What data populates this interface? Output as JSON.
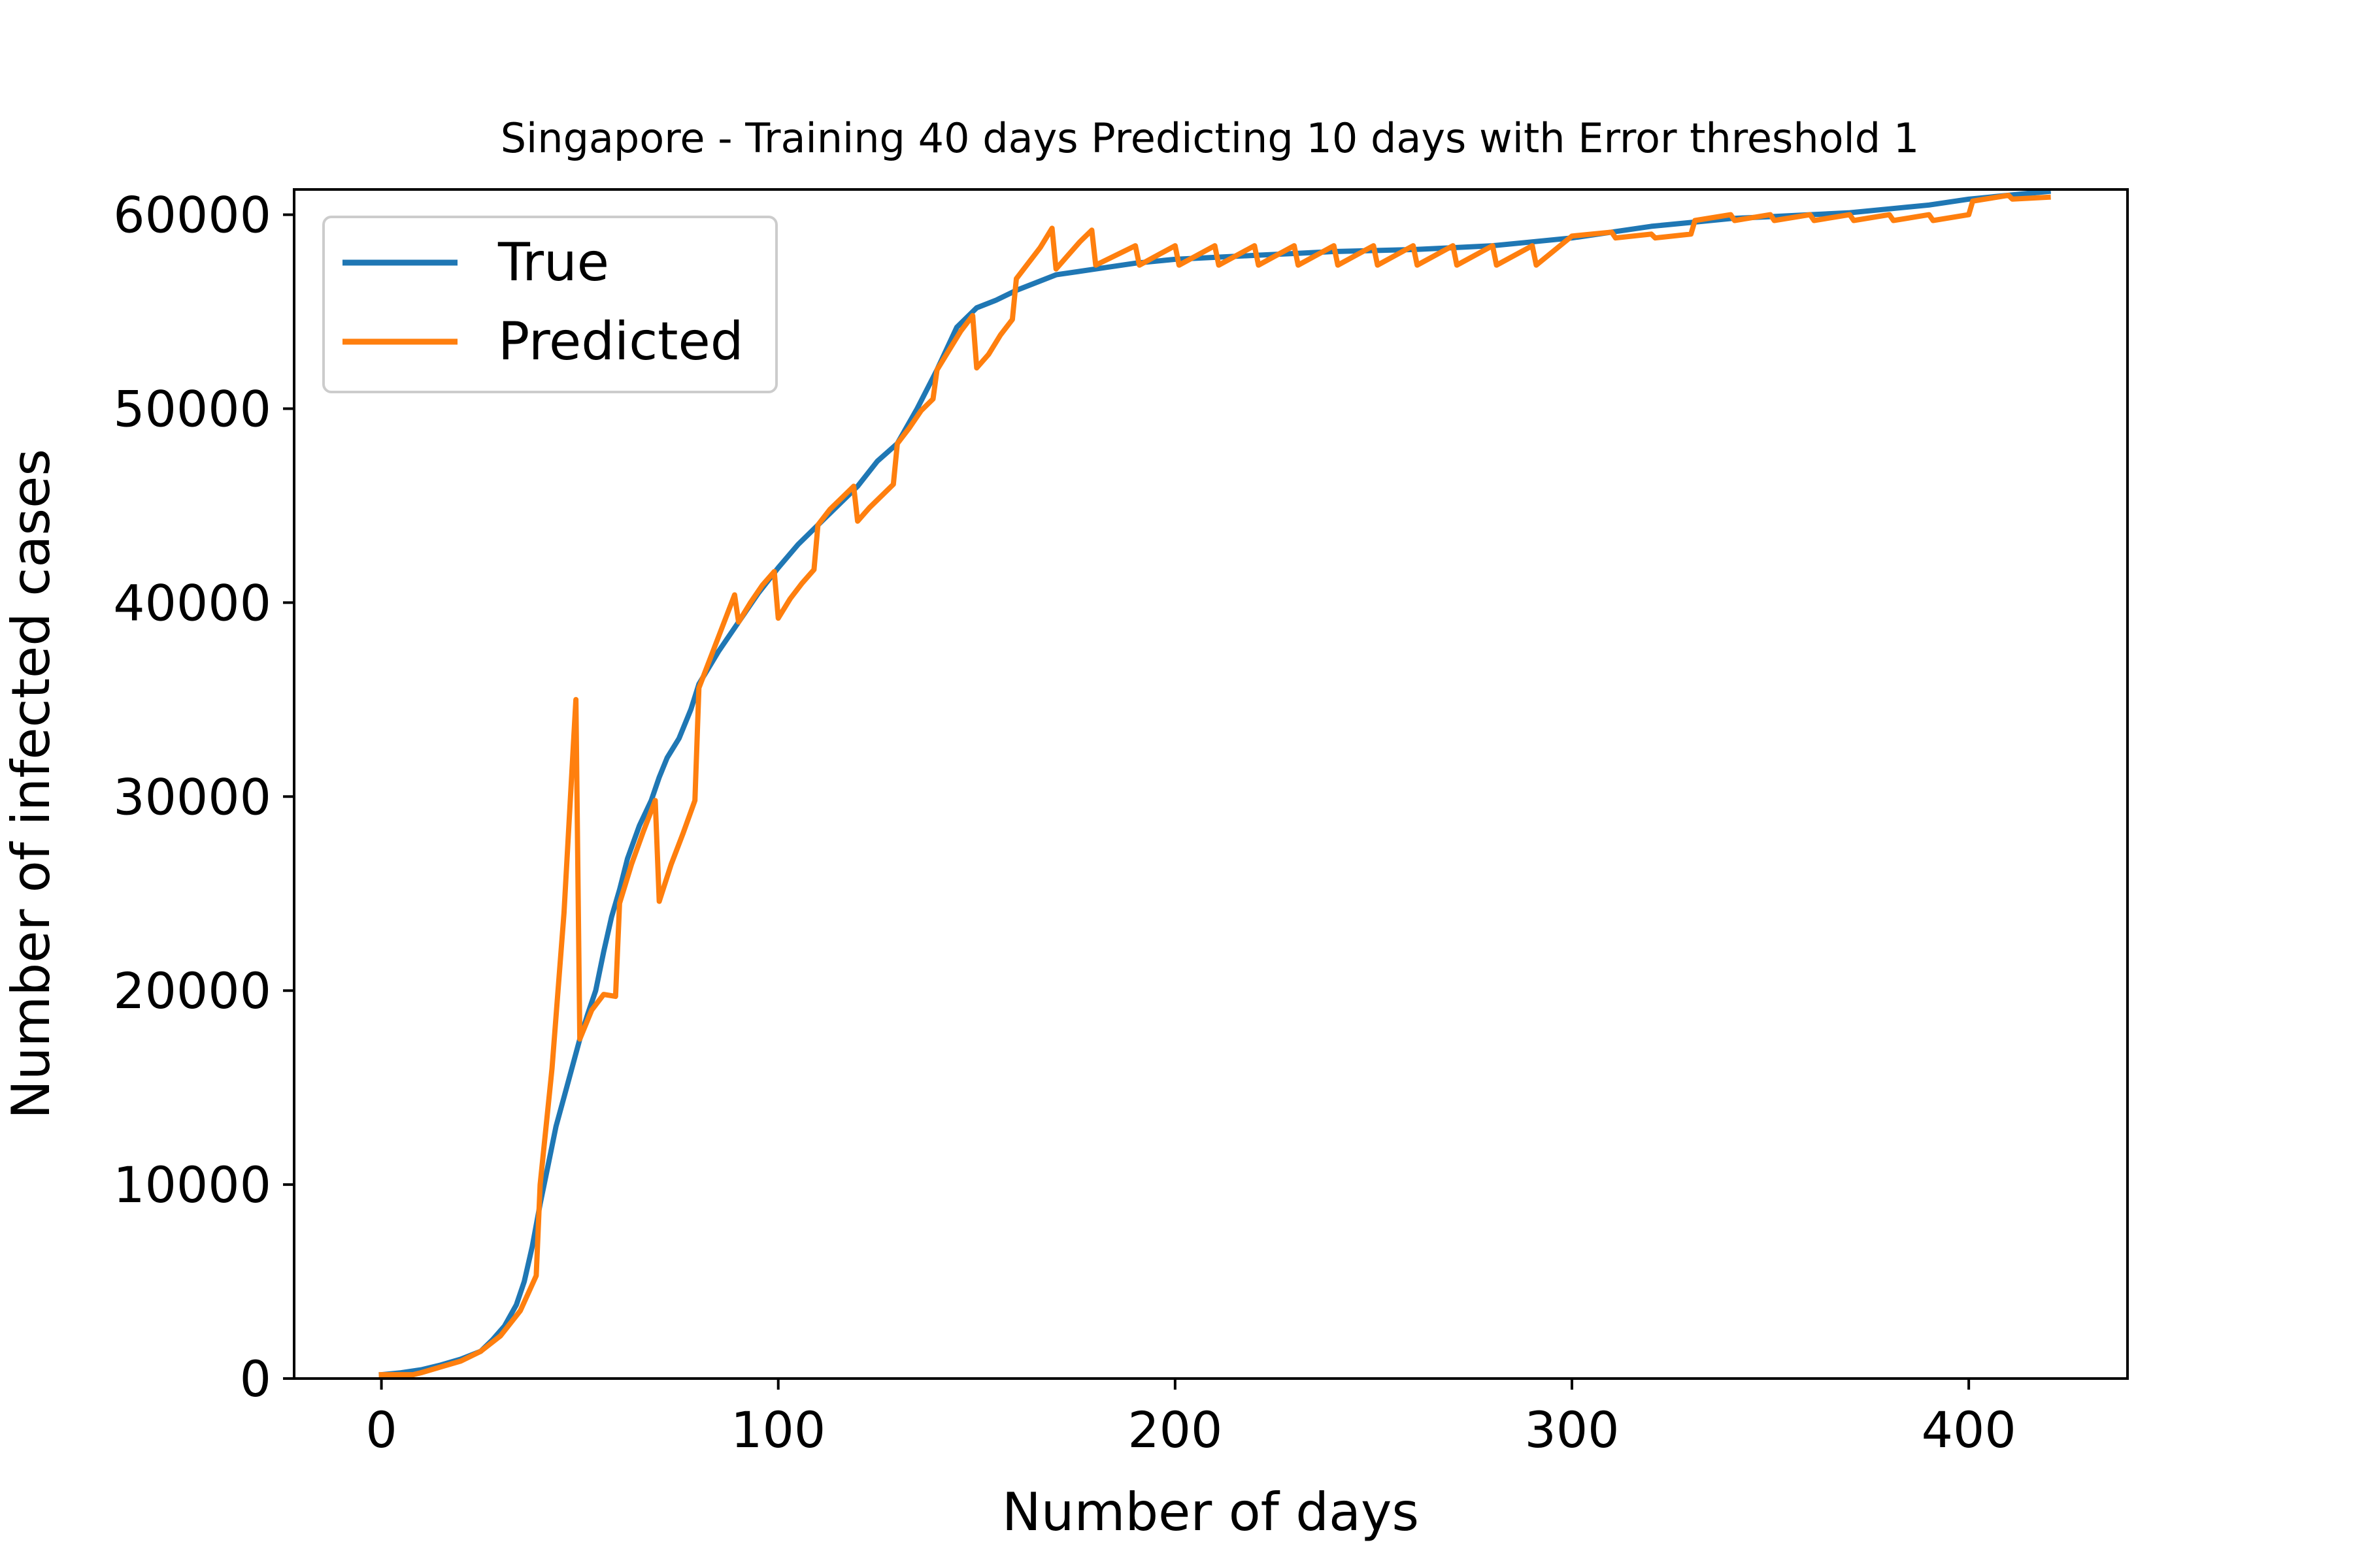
{
  "chart_data": {
    "type": "line",
    "title": "Singapore - Training 40 days Predicting 10 days with Error threshold 1",
    "xlabel": "Number of days",
    "ylabel": "Number of infected cases",
    "xlim": [
      -22,
      440
    ],
    "ylim": [
      0,
      61300
    ],
    "xticks": [
      0,
      100,
      200,
      300,
      400
    ],
    "yticks": [
      0,
      10000,
      20000,
      30000,
      40000,
      50000,
      60000
    ],
    "grid": false,
    "legend_position": "top-left",
    "series": [
      {
        "name": "True",
        "color": "#1f77b4",
        "points": [
          [
            0,
            200
          ],
          [
            5,
            300
          ],
          [
            10,
            450
          ],
          [
            15,
            700
          ],
          [
            20,
            1000
          ],
          [
            25,
            1400
          ],
          [
            28,
            2000
          ],
          [
            31,
            2700
          ],
          [
            34,
            3800
          ],
          [
            36,
            5000
          ],
          [
            38,
            6800
          ],
          [
            40,
            9000
          ],
          [
            42,
            11000
          ],
          [
            44,
            13000
          ],
          [
            46,
            14500
          ],
          [
            48,
            16000
          ],
          [
            50,
            17500
          ],
          [
            52,
            18800
          ],
          [
            54,
            20000
          ],
          [
            56,
            22000
          ],
          [
            58,
            23800
          ],
          [
            60,
            25200
          ],
          [
            62,
            26800
          ],
          [
            65,
            28500
          ],
          [
            68,
            29800
          ],
          [
            70,
            31000
          ],
          [
            72,
            32000
          ],
          [
            75,
            33000
          ],
          [
            78,
            34500
          ],
          [
            80,
            35800
          ],
          [
            85,
            37500
          ],
          [
            90,
            39000
          ],
          [
            95,
            40500
          ],
          [
            100,
            41800
          ],
          [
            105,
            43000
          ],
          [
            110,
            44000
          ],
          [
            115,
            45000
          ],
          [
            120,
            46000
          ],
          [
            125,
            47300
          ],
          [
            130,
            48200
          ],
          [
            135,
            50000
          ],
          [
            140,
            52000
          ],
          [
            145,
            54200
          ],
          [
            150,
            55200
          ],
          [
            155,
            55600
          ],
          [
            160,
            56100
          ],
          [
            165,
            56500
          ],
          [
            170,
            56900
          ],
          [
            180,
            57200
          ],
          [
            190,
            57500
          ],
          [
            200,
            57700
          ],
          [
            210,
            57800
          ],
          [
            220,
            57900
          ],
          [
            230,
            58000
          ],
          [
            240,
            58100
          ],
          [
            250,
            58150
          ],
          [
            260,
            58200
          ],
          [
            270,
            58300
          ],
          [
            280,
            58400
          ],
          [
            290,
            58600
          ],
          [
            300,
            58800
          ],
          [
            310,
            59100
          ],
          [
            320,
            59400
          ],
          [
            330,
            59600
          ],
          [
            340,
            59800
          ],
          [
            350,
            59900
          ],
          [
            360,
            60000
          ],
          [
            370,
            60100
          ],
          [
            380,
            60300
          ],
          [
            390,
            60500
          ],
          [
            400,
            60800
          ],
          [
            410,
            61000
          ],
          [
            420,
            61200
          ]
        ]
      },
      {
        "name": "Predicted",
        "color": "#ff7f0e",
        "points": [
          [
            0,
            200
          ],
          [
            8,
            200
          ],
          [
            10,
            300
          ],
          [
            15,
            600
          ],
          [
            20,
            900
          ],
          [
            25,
            1400
          ],
          [
            30,
            2200
          ],
          [
            35,
            3500
          ],
          [
            39,
            5300
          ],
          [
            40,
            10000
          ],
          [
            43,
            16000
          ],
          [
            46,
            24000
          ],
          [
            49,
            35000
          ],
          [
            50,
            17500
          ],
          [
            53,
            19000
          ],
          [
            56,
            19800
          ],
          [
            59,
            19700
          ],
          [
            60,
            24500
          ],
          [
            63,
            26500
          ],
          [
            66,
            28200
          ],
          [
            69,
            29800
          ],
          [
            70,
            24600
          ],
          [
            73,
            26500
          ],
          [
            76,
            28100
          ],
          [
            79,
            29800
          ],
          [
            80,
            35600
          ],
          [
            83,
            37200
          ],
          [
            86,
            38800
          ],
          [
            89,
            40400
          ],
          [
            90,
            39000
          ],
          [
            93,
            40000
          ],
          [
            96,
            40900
          ],
          [
            99,
            41600
          ],
          [
            100,
            39200
          ],
          [
            103,
            40200
          ],
          [
            106,
            41000
          ],
          [
            109,
            41700
          ],
          [
            110,
            44000
          ],
          [
            113,
            44800
          ],
          [
            116,
            45400
          ],
          [
            119,
            46000
          ],
          [
            120,
            44200
          ],
          [
            123,
            44900
          ],
          [
            126,
            45500
          ],
          [
            129,
            46100
          ],
          [
            130,
            48200
          ],
          [
            133,
            49000
          ],
          [
            136,
            49900
          ],
          [
            139,
            50500
          ],
          [
            140,
            52000
          ],
          [
            143,
            53000
          ],
          [
            146,
            54000
          ],
          [
            149,
            54800
          ],
          [
            150,
            52100
          ],
          [
            153,
            52800
          ],
          [
            156,
            53800
          ],
          [
            159,
            54600
          ],
          [
            160,
            56700
          ],
          [
            163,
            57500
          ],
          [
            166,
            58300
          ],
          [
            169,
            59300
          ],
          [
            170,
            57200
          ],
          [
            173,
            57900
          ],
          [
            176,
            58600
          ],
          [
            179,
            59200
          ],
          [
            180,
            57400
          ],
          [
            190,
            58400
          ],
          [
            191,
            57400
          ],
          [
            200,
            58400
          ],
          [
            201,
            57400
          ],
          [
            210,
            58400
          ],
          [
            211,
            57400
          ],
          [
            220,
            58400
          ],
          [
            221,
            57400
          ],
          [
            230,
            58400
          ],
          [
            231,
            57400
          ],
          [
            240,
            58400
          ],
          [
            241,
            57400
          ],
          [
            250,
            58400
          ],
          [
            251,
            57400
          ],
          [
            260,
            58400
          ],
          [
            261,
            57400
          ],
          [
            270,
            58400
          ],
          [
            271,
            57400
          ],
          [
            280,
            58400
          ],
          [
            281,
            57400
          ],
          [
            290,
            58400
          ],
          [
            291,
            57400
          ],
          [
            300,
            58900
          ],
          [
            310,
            59100
          ],
          [
            311,
            58800
          ],
          [
            320,
            59000
          ],
          [
            321,
            58800
          ],
          [
            330,
            59000
          ],
          [
            331,
            59700
          ],
          [
            340,
            60000
          ],
          [
            341,
            59700
          ],
          [
            350,
            60000
          ],
          [
            351,
            59700
          ],
          [
            360,
            60000
          ],
          [
            361,
            59700
          ],
          [
            370,
            60000
          ],
          [
            371,
            59700
          ],
          [
            380,
            60000
          ],
          [
            381,
            59700
          ],
          [
            390,
            60000
          ],
          [
            391,
            59700
          ],
          [
            400,
            60000
          ],
          [
            401,
            60700
          ],
          [
            410,
            61000
          ],
          [
            411,
            60800
          ],
          [
            420,
            60900
          ]
        ]
      }
    ]
  }
}
